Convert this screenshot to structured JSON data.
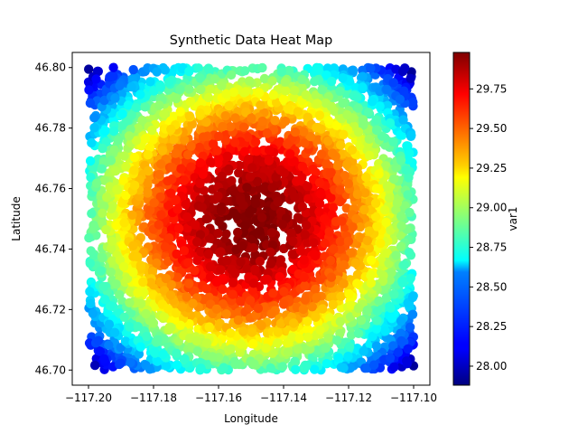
{
  "chart_data": {
    "type": "scatter",
    "title": "Synthetic Data Heat Map",
    "xlabel": "Longitude",
    "ylabel": "Latitude",
    "xlim": [
      -117.205,
      -117.095
    ],
    "ylim": [
      46.695,
      46.805
    ],
    "xticks": [
      -117.2,
      -117.18,
      -117.16,
      -117.14,
      -117.12,
      -117.1
    ],
    "xtick_labels": [
      "−117.20",
      "−117.18",
      "−117.16",
      "−117.14",
      "−117.12",
      "−117.10"
    ],
    "yticks": [
      46.7,
      46.72,
      46.74,
      46.76,
      46.78,
      46.8
    ],
    "ytick_labels": [
      "46.70",
      "46.72",
      "46.74",
      "46.76",
      "46.78",
      "46.80"
    ],
    "points": {
      "x_range": [
        -117.2,
        -117.1
      ],
      "y_range": [
        46.7,
        46.8
      ],
      "center": [
        -117.15,
        46.75
      ],
      "value_at_center": 29.98,
      "value_at_corner": 27.9,
      "value_range": [
        27.88,
        29.98
      ]
    },
    "colorbar": {
      "label": "var1",
      "colormap": "jet",
      "range": [
        27.88,
        29.98
      ],
      "ticks": [
        28.0,
        28.25,
        28.5,
        28.75,
        29.0,
        29.25,
        29.5,
        29.75
      ],
      "tick_labels": [
        "28.00",
        "28.25",
        "28.50",
        "28.75",
        "29.00",
        "29.25",
        "29.50",
        "29.75"
      ]
    },
    "grid": false,
    "legend": "none"
  }
}
